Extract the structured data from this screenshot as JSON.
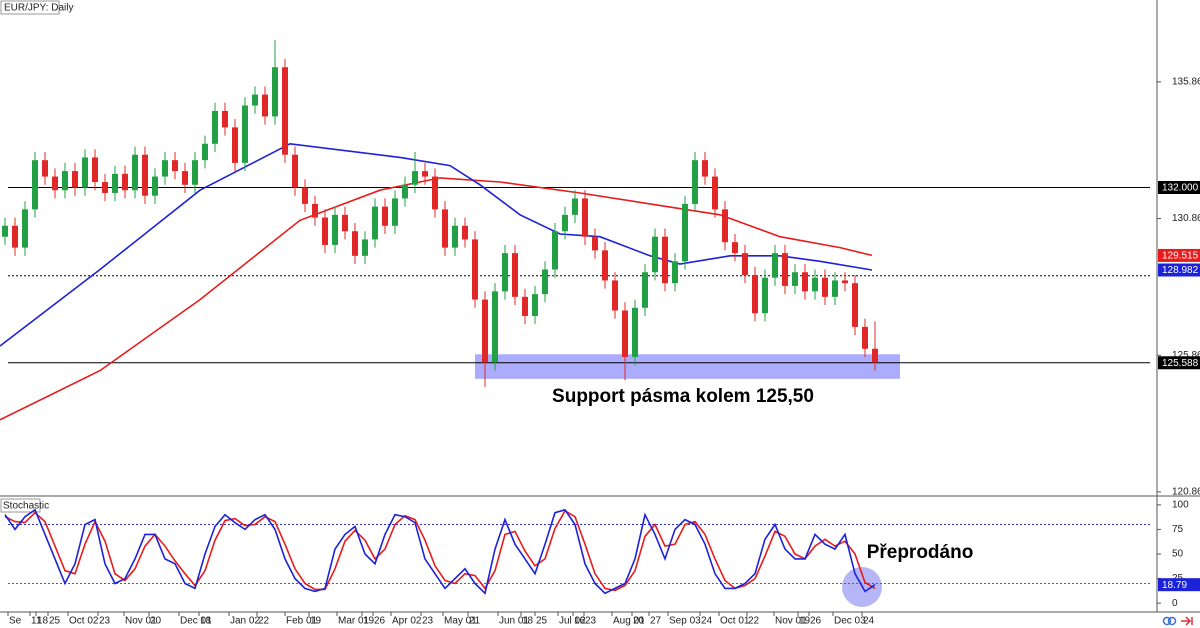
{
  "chart_data": [
    {
      "type": "candlestick",
      "title": "EUR/JPY: Daily",
      "ylim": [
        120.75,
        138.86
      ],
      "yticks": [
        120.864,
        125.864,
        130.864,
        135.864
      ],
      "xlim": [
        -0.5,
        115.2
      ],
      "xticks": [
        {
          "value": 0.3,
          "label": "Se"
        },
        {
          "value": 2.5,
          "label": "11"
        },
        {
          "value": 3.1,
          "label": "18"
        },
        {
          "value": 4.3,
          "label": "25"
        },
        {
          "value": 6.3,
          "label": "Oct 02"
        },
        {
          "value": 9.3,
          "label": "23"
        },
        {
          "value": 11.9,
          "label": "Nov 01"
        },
        {
          "value": 14.4,
          "label": "20"
        },
        {
          "value": 17.4,
          "label": "Dec 01"
        },
        {
          "value": 19.4,
          "label": "18"
        },
        {
          "value": 22.4,
          "label": "Jan 02"
        },
        {
          "value": 25.2,
          "label": "22"
        },
        {
          "value": 28,
          "label": "Feb 01"
        },
        {
          "value": 30.4,
          "label": "19"
        },
        {
          "value": 33.2,
          "label": "Mar 01"
        },
        {
          "value": 35.7,
          "label": "19"
        },
        {
          "value": 36.8,
          "label": "26"
        },
        {
          "value": 38.6,
          "label": "Apr 02"
        },
        {
          "value": 41.6,
          "label": "23"
        },
        {
          "value": 43.8,
          "label": "May 01"
        },
        {
          "value": 46.3,
          "label": "21"
        },
        {
          "value": 49.3,
          "label": "Jun 01"
        },
        {
          "value": 51.6,
          "label": "18"
        },
        {
          "value": 53,
          "label": "25"
        },
        {
          "value": 55.3,
          "label": "Jul 02"
        },
        {
          "value": 56.8,
          "label": "16"
        },
        {
          "value": 57.9,
          "label": "23"
        },
        {
          "value": 60.7,
          "label": "Aug 01"
        },
        {
          "value": 62.7,
          "label": "20"
        },
        {
          "value": 64.4,
          "label": "27"
        },
        {
          "value": 66.3,
          "label": "Sep 03"
        },
        {
          "value": 69.5,
          "label": "24"
        },
        {
          "value": 71.4,
          "label": "Oct 01"
        },
        {
          "value": 74.2,
          "label": "22"
        },
        {
          "value": 76.9,
          "label": "Nov 01"
        },
        {
          "value": 79.3,
          "label": "19"
        },
        {
          "value": 80.4,
          "label": "26"
        },
        {
          "value": 82.8,
          "label": "Dec 03"
        },
        {
          "value": 85.7,
          "label": "24"
        }
      ],
      "open": [
        130.2,
        130.6,
        129.8,
        131.2,
        133.0,
        132.4,
        131.9,
        132.6,
        132.0,
        133.1,
        132.2,
        131.8,
        132.5,
        131.9,
        133.2,
        131.7,
        132.4,
        133.0,
        132.6,
        132.1,
        133.0,
        133.6,
        134.8,
        134.2,
        132.9,
        135.0,
        135.4,
        134.6,
        136.4,
        133.2,
        132.0,
        131.4,
        130.9,
        129.9,
        131.0,
        130.4,
        129.5,
        130.1,
        131.3,
        130.6,
        131.6,
        132.1,
        132.6,
        132.4,
        131.2,
        129.8,
        130.6,
        130.1,
        127.9,
        125.6,
        128.2,
        129.6,
        128.0,
        127.3,
        128.1,
        129.0,
        130.4,
        131.0,
        131.6,
        130.2,
        129.7,
        128.6,
        127.5,
        125.8,
        127.6,
        128.9,
        130.2,
        128.5,
        129.3,
        131.4,
        133.0,
        132.4,
        131.2,
        130.0,
        129.6,
        128.8,
        127.4,
        128.7,
        129.6,
        128.4,
        128.9,
        128.2,
        128.7,
        128.0,
        128.6,
        128.5,
        126.9,
        126.1
      ],
      "high": [
        130.9,
        130.9,
        131.5,
        133.3,
        133.3,
        132.7,
        132.9,
        132.9,
        133.4,
        133.4,
        132.5,
        132.8,
        132.8,
        133.5,
        133.5,
        132.7,
        133.3,
        133.3,
        132.9,
        133.3,
        133.9,
        135.1,
        135.1,
        134.5,
        135.3,
        135.7,
        135.7,
        137.4,
        136.7,
        133.5,
        132.3,
        131.7,
        131.2,
        131.3,
        131.3,
        130.7,
        130.4,
        131.6,
        131.6,
        131.9,
        132.4,
        133.3,
        132.9,
        132.7,
        131.5,
        130.9,
        130.9,
        130.4,
        128.2,
        128.5,
        129.9,
        129.9,
        128.3,
        128.4,
        129.3,
        130.7,
        131.3,
        131.9,
        131.9,
        130.5,
        130.0,
        128.9,
        127.8,
        127.9,
        129.2,
        130.5,
        130.5,
        129.6,
        131.7,
        133.3,
        133.3,
        132.7,
        131.5,
        130.3,
        129.9,
        129.1,
        129.0,
        129.9,
        129.9,
        129.2,
        129.2,
        129.0,
        129.0,
        128.9,
        128.9,
        128.8,
        127.2,
        127.1
      ],
      "low": [
        129.9,
        129.5,
        129.5,
        130.9,
        132.1,
        131.6,
        131.6,
        131.7,
        131.7,
        131.9,
        131.5,
        131.5,
        131.6,
        131.6,
        131.4,
        131.4,
        132.1,
        132.3,
        131.8,
        131.8,
        132.7,
        133.3,
        133.9,
        132.6,
        132.6,
        134.7,
        134.3,
        134.3,
        132.9,
        131.7,
        131.1,
        130.6,
        129.6,
        129.6,
        130.1,
        129.2,
        129.2,
        129.8,
        130.3,
        130.3,
        131.3,
        131.8,
        132.1,
        130.9,
        129.5,
        129.5,
        129.8,
        127.6,
        124.7,
        125.3,
        127.9,
        127.7,
        127.0,
        127.0,
        127.8,
        128.7,
        130.1,
        130.7,
        129.9,
        129.4,
        128.3,
        127.2,
        124.95,
        125.5,
        127.3,
        128.6,
        128.2,
        128.2,
        129.0,
        131.1,
        132.1,
        130.9,
        129.7,
        129.3,
        128.5,
        127.1,
        127.1,
        128.4,
        128.1,
        128.1,
        127.9,
        127.9,
        127.7,
        127.7,
        128.2,
        126.6,
        125.8,
        125.3
      ],
      "close": [
        130.6,
        129.8,
        131.2,
        133.0,
        132.4,
        131.9,
        132.6,
        132.0,
        133.1,
        132.2,
        131.8,
        132.5,
        131.9,
        133.2,
        131.7,
        132.4,
        133.0,
        132.6,
        132.1,
        133.0,
        133.6,
        134.8,
        134.2,
        132.9,
        135.0,
        135.4,
        134.6,
        136.4,
        133.2,
        132.0,
        131.4,
        130.9,
        129.9,
        131.0,
        130.4,
        129.5,
        130.1,
        131.3,
        130.6,
        131.6,
        132.1,
        132.6,
        132.4,
        131.2,
        129.8,
        130.6,
        130.1,
        127.9,
        125.6,
        128.2,
        129.6,
        128.0,
        127.3,
        128.1,
        129.0,
        130.4,
        131.0,
        131.6,
        130.2,
        129.7,
        128.6,
        127.5,
        125.8,
        127.6,
        128.9,
        130.2,
        128.5,
        129.3,
        131.4,
        133.0,
        132.4,
        131.2,
        130.0,
        129.6,
        128.8,
        127.4,
        128.7,
        129.6,
        128.4,
        128.9,
        128.2,
        128.7,
        128.0,
        128.6,
        128.5,
        126.9,
        126.1,
        125.6
      ],
      "up_color": "#23a046",
      "down_color": "#e02828",
      "series": [
        {
          "color": "#e81c1c",
          "x": [
            -0.5,
            9.5,
            19.5,
            29.5,
            37.5,
            43.5,
            49.5,
            57.5,
            64.5,
            71.5,
            77.5,
            83.5,
            86.7
          ],
          "values": [
            123.5,
            125.3,
            127.9,
            130.8,
            131.9,
            132.35,
            132.2,
            131.8,
            131.4,
            131.0,
            130.2,
            129.8,
            129.515
          ]
        },
        {
          "color": "#1c22d8",
          "x": [
            -0.5,
            9.5,
            19.5,
            28.5,
            39.5,
            44.5,
            47.5,
            51.5,
            55.5,
            59.5,
            64.5,
            67.5,
            72.5,
            77.5,
            81.5,
            86.7
          ],
          "values": [
            126.2,
            129.0,
            131.9,
            133.6,
            133.1,
            132.8,
            132.1,
            131.0,
            130.3,
            130.2,
            129.5,
            129.2,
            129.5,
            129.5,
            129.3,
            128.982
          ]
        }
      ],
      "levels": [
        {
          "value": 132,
          "style": "solid"
        },
        {
          "value": 128.77,
          "style": "dotted"
        },
        {
          "value": 125.588,
          "style": "solid"
        }
      ],
      "price_tags": [
        {
          "value": 132,
          "label": "132.000",
          "color": "#000000"
        },
        {
          "value": 129.515,
          "color": "#e81c1c"
        },
        {
          "value": 128.982,
          "color": "#1c22d8"
        },
        {
          "value": 125.588,
          "color": "#000000"
        }
      ],
      "zone": {
        "from": 125.0,
        "to": 125.9,
        "x": [
          47.0,
          89.5
        ],
        "color": "#8080ff"
      },
      "annotation": "Support pásma kolem 125,50"
    },
    {
      "type": "line",
      "title": "Stochastic",
      "ylim": [
        -9,
        108
      ],
      "yticks": [
        0,
        25,
        50,
        75,
        100
      ],
      "xlim": [
        -0.5,
        115.2
      ],
      "series": [
        {
          "color": "#e81c1c",
          "values": [
            88,
            83,
            82,
            92,
            83,
            58,
            33,
            30,
            60,
            83,
            63,
            30,
            23,
            35,
            58,
            70,
            58,
            43,
            30,
            18,
            33,
            64,
            84,
            86,
            79,
            80,
            88,
            83,
            60,
            35,
            20,
            14,
            14,
            35,
            63,
            74,
            64,
            45,
            55,
            80,
            89,
            85,
            64,
            38,
            23,
            20,
            30,
            28,
            15,
            33,
            70,
            73,
            53,
            38,
            45,
            76,
            94,
            88,
            60,
            30,
            15,
            13,
            18,
            33,
            68,
            80,
            58,
            60,
            80,
            83,
            70,
            45,
            23,
            15,
            18,
            25,
            48,
            73,
            68,
            50,
            45,
            58,
            65,
            58,
            63,
            50,
            21,
            15
          ]
        },
        {
          "color": "#1c22d8",
          "values": [
            90,
            75,
            88,
            95,
            70,
            45,
            20,
            40,
            80,
            85,
            40,
            20,
            25,
            45,
            70,
            70,
            45,
            40,
            20,
            15,
            50,
            78,
            90,
            82,
            75,
            85,
            90,
            75,
            45,
            25,
            15,
            12,
            15,
            55,
            70,
            78,
            50,
            40,
            70,
            90,
            88,
            82,
            45,
            30,
            15,
            25,
            35,
            20,
            10,
            55,
            85,
            60,
            45,
            30,
            60,
            92,
            95,
            80,
            40,
            20,
            10,
            15,
            20,
            45,
            90,
            70,
            45,
            75,
            85,
            80,
            60,
            30,
            15,
            15,
            20,
            30,
            65,
            80,
            55,
            45,
            45,
            70,
            60,
            55,
            70,
            30,
            12,
            18.79
          ]
        }
      ],
      "levels": [
        {
          "value": 80,
          "style": "dotted",
          "color": "#3030c8"
        },
        {
          "value": 20,
          "style": "dotted",
          "color": "#d03030"
        }
      ],
      "price_tags": [
        {
          "value": 18.79,
          "color": "#1c22d8"
        }
      ],
      "annotation": "Přeprodáno"
    }
  ]
}
